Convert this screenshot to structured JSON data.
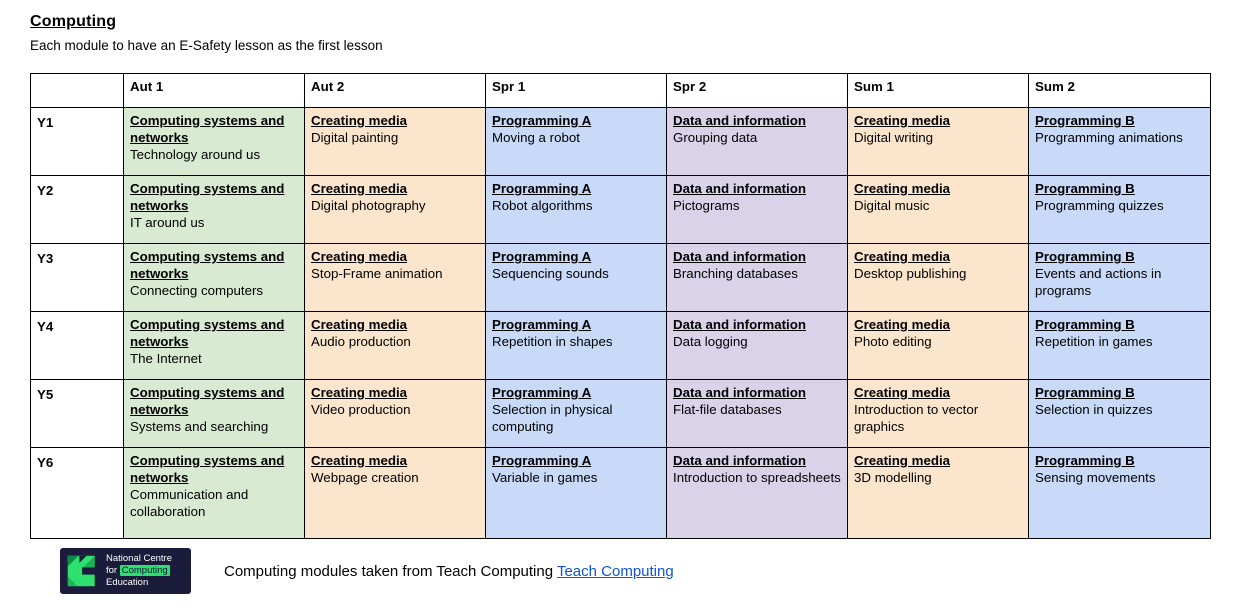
{
  "page": {
    "title": "Computing",
    "subtitle": "Each module to have an E-Safety lesson as the first lesson"
  },
  "table": {
    "columns": [
      "",
      "Aut 1",
      "Aut 2",
      "Spr 1",
      "Spr 2",
      "Sum 1",
      "Sum 2"
    ],
    "colors": {
      "green": "#d9ead3",
      "peach": "#fce5cd",
      "blue": "#c9daf8",
      "purple": "#d9d2e9"
    },
    "rows": [
      {
        "year": "Y1",
        "cells": [
          {
            "category": "Computing systems and networks",
            "topic": "Technology around us",
            "color": "green"
          },
          {
            "category": "Creating media",
            "topic": "Digital painting",
            "color": "peach"
          },
          {
            "category": "Programming A",
            "topic": "Moving a robot",
            "color": "blue"
          },
          {
            "category": "Data and information",
            "topic": "Grouping data",
            "color": "purple"
          },
          {
            "category": "Creating media",
            "topic": "Digital writing",
            "color": "peach"
          },
          {
            "category": "Programming B",
            "topic": "Programming animations",
            "color": "blue"
          }
        ]
      },
      {
        "year": "Y2",
        "cells": [
          {
            "category": "Computing systems and networks",
            "topic": "IT around us",
            "color": "green"
          },
          {
            "category": "Creating media",
            "topic": "Digital photography",
            "color": "peach"
          },
          {
            "category": "Programming A",
            "topic": "Robot algorithms",
            "color": "blue"
          },
          {
            "category": "Data and information",
            "topic": "Pictograms",
            "color": "purple"
          },
          {
            "category": "Creating media",
            "topic": "Digital music",
            "color": "peach"
          },
          {
            "category": "Programming B",
            "topic": "Programming quizzes",
            "color": "blue"
          }
        ]
      },
      {
        "year": "Y3",
        "cells": [
          {
            "category": "Computing systems and networks",
            "topic": "Connecting computers",
            "color": "green"
          },
          {
            "category": "Creating media",
            "topic": "Stop-Frame animation",
            "color": "peach"
          },
          {
            "category": "Programming A",
            "topic": "Sequencing sounds",
            "color": "blue"
          },
          {
            "category": "Data and information",
            "topic": "Branching databases",
            "color": "purple"
          },
          {
            "category": "Creating media",
            "topic": "Desktop publishing",
            "color": "peach"
          },
          {
            "category": "Programming B",
            "topic": "Events and actions in programs",
            "color": "blue"
          }
        ]
      },
      {
        "year": "Y4",
        "cells": [
          {
            "category": "Computing systems and networks",
            "topic": "The Internet",
            "color": "green"
          },
          {
            "category": "Creating media",
            "topic": "Audio production",
            "color": "peach"
          },
          {
            "category": "Programming A",
            "topic": "Repetition in shapes",
            "color": "blue"
          },
          {
            "category": "Data and information",
            "topic": "Data logging",
            "color": "purple"
          },
          {
            "category": "Creating media",
            "topic": "Photo editing",
            "color": "peach"
          },
          {
            "category": "Programming B",
            "topic": "Repetition in games",
            "color": "blue"
          }
        ]
      },
      {
        "year": "Y5",
        "cells": [
          {
            "category": "Computing systems and networks",
            "topic": "Systems and searching",
            "color": "green"
          },
          {
            "category": "Creating media",
            "topic": "Video production",
            "color": "peach"
          },
          {
            "category": "Programming A",
            "topic": "Selection in physical computing",
            "color": "blue"
          },
          {
            "category": "Data and information",
            "topic": "Flat-file databases",
            "color": "purple"
          },
          {
            "category": "Creating media",
            "topic": "Introduction to vector graphics",
            "color": "peach"
          },
          {
            "category": "Programming B",
            "topic": "Selection in quizzes",
            "color": "blue"
          }
        ]
      },
      {
        "year": "Y6",
        "cells": [
          {
            "category": "Computing systems and networks",
            "topic": "Communication and collaboration",
            "color": "green"
          },
          {
            "category": "Creating media",
            "topic": "Webpage creation",
            "color": "peach"
          },
          {
            "category": "Programming A",
            "topic": "Variable in games",
            "color": "blue"
          },
          {
            "category": "Data and information",
            "topic": "Introduction to spreadsheets",
            "color": "purple"
          },
          {
            "category": "Creating media",
            "topic": "3D modelling",
            "color": "peach"
          },
          {
            "category": "Programming B",
            "topic": "Sensing movements",
            "color": "blue"
          }
        ]
      }
    ]
  },
  "footer": {
    "credit_text": "Computing modules taken from Teach Computing",
    "link_label": "Teach Computing",
    "link_color": "#1155cc",
    "logo": {
      "line1": "National Centre",
      "line2_prefix": "for",
      "line2_highlight": "Computing",
      "line3": "Education",
      "bg_color": "#1b1b3c",
      "green_color": "#2ee06e",
      "highlight_text_color": "#12123a"
    }
  }
}
